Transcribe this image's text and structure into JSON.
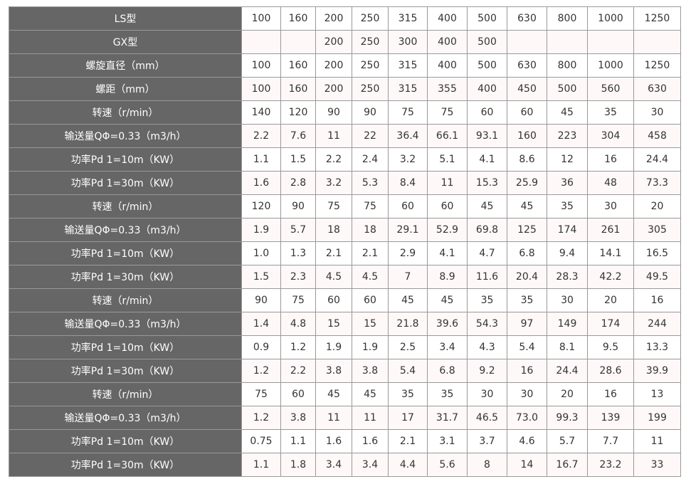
{
  "table": {
    "rows": [
      {
        "label": "LS型",
        "values": [
          "100",
          "160",
          "200",
          "250",
          "315",
          "400",
          "500",
          "630",
          "800",
          "1000",
          "1250"
        ]
      },
      {
        "label": "GX型",
        "values": [
          "",
          "",
          "200",
          "250",
          "300",
          "400",
          "500",
          "",
          "",
          "",
          ""
        ]
      },
      {
        "label": "螺旋直径（mm）",
        "values": [
          "100",
          "160",
          "200",
          "250",
          "315",
          "400",
          "500",
          "630",
          "800",
          "1000",
          "1250"
        ]
      },
      {
        "label": "螺距（mm）",
        "values": [
          "100",
          "160",
          "200",
          "250",
          "315",
          "355",
          "400",
          "450",
          "500",
          "560",
          "630"
        ]
      },
      {
        "label": "转速（r/min）",
        "values": [
          "140",
          "120",
          "90",
          "90",
          "75",
          "75",
          "60",
          "60",
          "45",
          "35",
          "30"
        ]
      },
      {
        "label": "输送量QΦ=0.33（m3/h）",
        "values": [
          "2.2",
          "7.6",
          "11",
          "22",
          "36.4",
          "66.1",
          "93.1",
          "160",
          "223",
          "304",
          "458"
        ]
      },
      {
        "label": "功率Pd 1=10m（KW）",
        "values": [
          "1.1",
          "1.5",
          "2.2",
          "2.4",
          "3.2",
          "5.1",
          "4.1",
          "8.6",
          "12",
          "16",
          "24.4"
        ]
      },
      {
        "label": "功率Pd 1=30m（KW）",
        "values": [
          "1.6",
          "2.8",
          "3.2",
          "5.3",
          "8.4",
          "11",
          "15.3",
          "25.9",
          "36",
          "48",
          "73.3"
        ]
      },
      {
        "label": "转速（r/min）",
        "values": [
          "120",
          "90",
          "75",
          "75",
          "60",
          "60",
          "45",
          "45",
          "35",
          "30",
          "20"
        ]
      },
      {
        "label": "输送量QΦ=0.33（m3/h）",
        "values": [
          "1.9",
          "5.7",
          "18",
          "18",
          "29.1",
          "52.9",
          "69.8",
          "125",
          "174",
          "261",
          "305"
        ]
      },
      {
        "label": "功率Pd 1=10m（KW）",
        "values": [
          "1.0",
          "1.3",
          "2.1",
          "2.1",
          "2.9",
          "4.1",
          "4.7",
          "6.8",
          "9.4",
          "14.1",
          "16.5"
        ]
      },
      {
        "label": "功率Pd 1=30m（KW）",
        "values": [
          "1.5",
          "2.3",
          "4.5",
          "4.5",
          "7",
          "8.9",
          "11.6",
          "20.4",
          "28.3",
          "42.2",
          "49.5"
        ]
      },
      {
        "label": "转速（r/min）",
        "values": [
          "90",
          "75",
          "60",
          "60",
          "45",
          "45",
          "35",
          "35",
          "30",
          "20",
          "16"
        ]
      },
      {
        "label": "输送量QΦ=0.33（m3/h）",
        "values": [
          "1.4",
          "4.8",
          "15",
          "15",
          "21.8",
          "39.6",
          "54.3",
          "97",
          "149",
          "174",
          "244"
        ]
      },
      {
        "label": "功率Pd 1=10m（KW）",
        "values": [
          "0.9",
          "1.2",
          "1.9",
          "1.9",
          "2.5",
          "3.4",
          "4.3",
          "5.4",
          "8.1",
          "9.5",
          "13.3"
        ]
      },
      {
        "label": "功率Pd 1=30m（KW）",
        "values": [
          "1.2",
          "2.2",
          "3.8",
          "3.8",
          "5.4",
          "6.8",
          "9.2",
          "16",
          "24.4",
          "28.6",
          "39.9"
        ]
      },
      {
        "label": "转速（r/min）",
        "values": [
          "75",
          "60",
          "45",
          "45",
          "35",
          "35",
          "30",
          "30",
          "20",
          "16",
          "13"
        ]
      },
      {
        "label": "输送量QΦ=0.33（m3/h）",
        "values": [
          "1.2",
          "3.8",
          "11",
          "11",
          "17",
          "31.7",
          "46.5",
          "73.0",
          "99.3",
          "139",
          "199"
        ]
      },
      {
        "label": "功率Pd 1=10m（KW）",
        "values": [
          "0.75",
          "1.1",
          "1.6",
          "1.6",
          "2.1",
          "3.1",
          "3.7",
          "4.6",
          "5.7",
          "7.7",
          "11"
        ]
      },
      {
        "label": "功率Pd 1=30m（KW）",
        "values": [
          "1.1",
          "1.8",
          "3.4",
          "3.4",
          "4.4",
          "5.6",
          "8",
          "14",
          "16.7",
          "23.2",
          "33"
        ]
      }
    ]
  },
  "colors": {
    "header_bg": "#666666",
    "header_text": "#ffffff",
    "alt_row_bg": "#fff8f8",
    "border": "#999999"
  }
}
